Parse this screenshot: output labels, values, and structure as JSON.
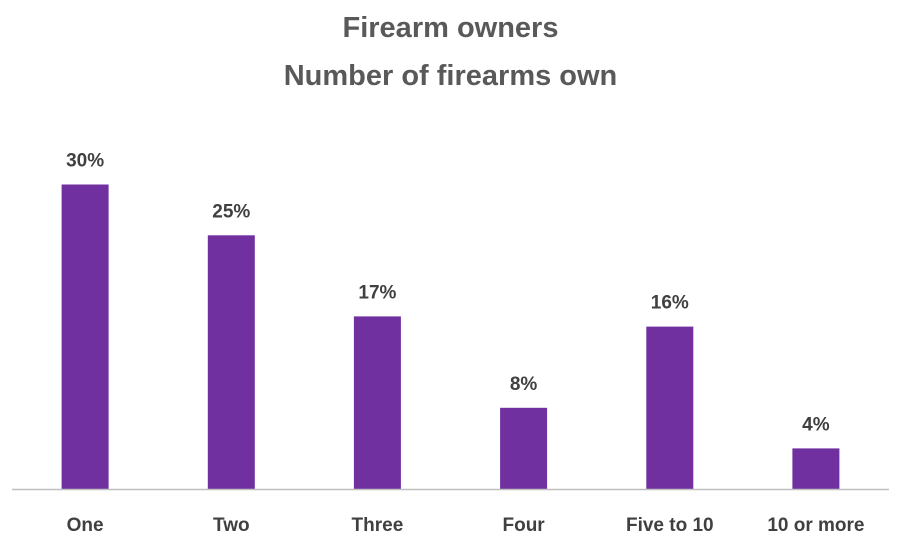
{
  "chart_data": {
    "type": "bar",
    "title_lines": [
      "Firearm owners",
      "Number of firearms own"
    ],
    "categories": [
      "One",
      "Two",
      "Three",
      "Four",
      "Five to 10",
      "10 or more"
    ],
    "values": [
      30,
      25,
      17,
      8,
      16,
      4
    ],
    "value_labels": [
      "30%",
      "25%",
      "17%",
      "8%",
      "16%",
      "4%"
    ],
    "ylim": [
      0,
      33
    ],
    "grid": false,
    "legend": "none",
    "bar_color": "#7030A0",
    "axis_color": "#BFBFBF"
  }
}
